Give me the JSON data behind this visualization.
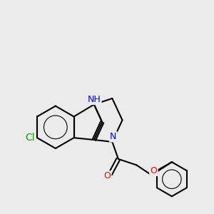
{
  "bg_color": "#EBEBEB",
  "bond_color": "#000000",
  "bond_width": 1.5,
  "atom_colors": {
    "N": "#0000FF",
    "O": "#FF0000",
    "Cl": "#00AA00",
    "H": "#4488AA",
    "C": "#000000"
  },
  "font_size_atom": 9,
  "font_size_label": 8
}
